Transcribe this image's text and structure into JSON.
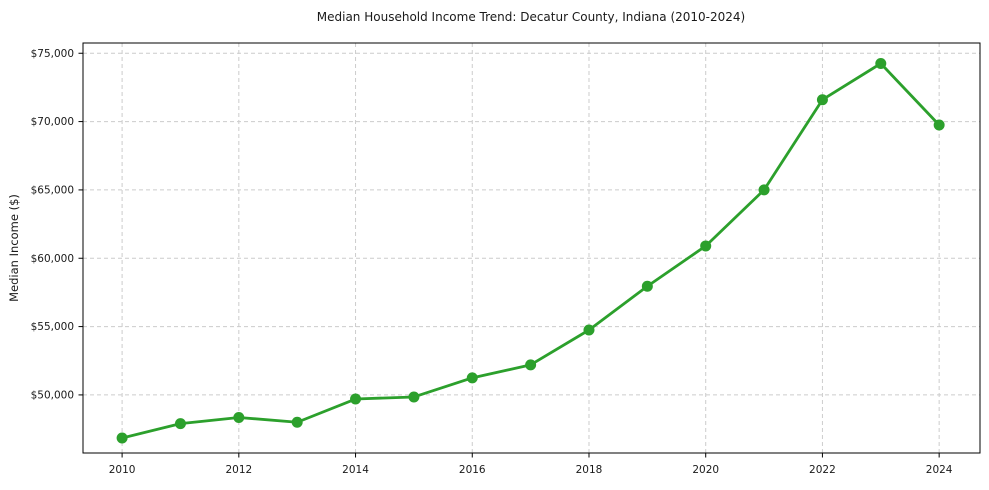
{
  "page": {
    "background_color": "#ffffff"
  },
  "chart_data": {
    "type": "line",
    "title": "Median Household Income Trend: Decatur County, Indiana (2010-2024)",
    "xlabel": "",
    "ylabel": "Median Income ($)",
    "x": [
      2010,
      2011,
      2012,
      2013,
      2014,
      2015,
      2016,
      2017,
      2018,
      2019,
      2020,
      2021,
      2022,
      2023,
      2024
    ],
    "series": [
      {
        "name": "Median Household Income",
        "values": [
          46850,
          47900,
          48350,
          48000,
          49700,
          49850,
          51250,
          52200,
          54750,
          57950,
          60900,
          65000,
          71600,
          74250,
          69750
        ]
      }
    ],
    "xlim": [
      2009.33,
      2024.7
    ],
    "ylim": [
      45750,
      75750
    ],
    "xticks": [
      2010,
      2012,
      2014,
      2016,
      2018,
      2020,
      2022,
      2024
    ],
    "yticks": [
      50000,
      55000,
      60000,
      65000,
      70000,
      75000
    ],
    "ytick_labels": [
      "$50,000",
      "$55,000",
      "$60,000",
      "$65,000",
      "$70,000",
      "$75,000"
    ],
    "grid": "both",
    "grid_style": "dashed",
    "legend": "none",
    "line_color": "#2ca02c",
    "marker": "circle",
    "marker_radius": 5.5,
    "line_width": 2.8,
    "grid_color": "#cccccc",
    "axis_color": "#000000",
    "text_color": "#1a1a1a"
  }
}
